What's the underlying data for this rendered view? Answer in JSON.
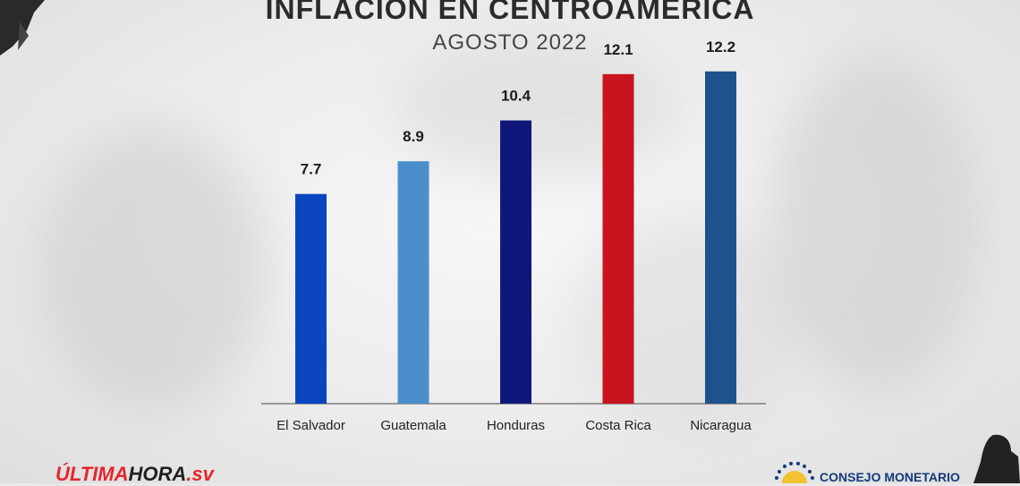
{
  "header": {
    "title": "INFLACIÓN EN CENTROAMÉRICA",
    "subtitle": "AGOSTO 2022"
  },
  "chart_data": {
    "type": "bar",
    "title": "INFLACIÓN EN CENTROAMÉRICA",
    "subtitle": "AGOSTO 2022",
    "xlabel": "",
    "ylabel": "",
    "categories": [
      "El Salvador",
      "Guatemala",
      "Honduras",
      "Costa Rica",
      "Nicaragua"
    ],
    "values": [
      7.7,
      8.9,
      10.4,
      12.1,
      12.2
    ],
    "value_labels": [
      "7.7",
      "8.9",
      "10.4",
      "12.1",
      "12.2"
    ],
    "colors": [
      "#0a45bf",
      "#4a8fcb",
      "#10177a",
      "#c8141f",
      "#1e528c"
    ],
    "ylim": [
      0,
      14
    ],
    "grid": false,
    "legend": "none"
  },
  "branding": {
    "left_logo": {
      "part1": "ÚLTIMA",
      "part2": "HORA",
      "part3": ".sv"
    },
    "right_logo": {
      "text": "CONSEJO MONETARIO"
    },
    "colors": {
      "red": "#e3262c",
      "navy": "#123a7a",
      "gold": "#f2c230"
    }
  }
}
